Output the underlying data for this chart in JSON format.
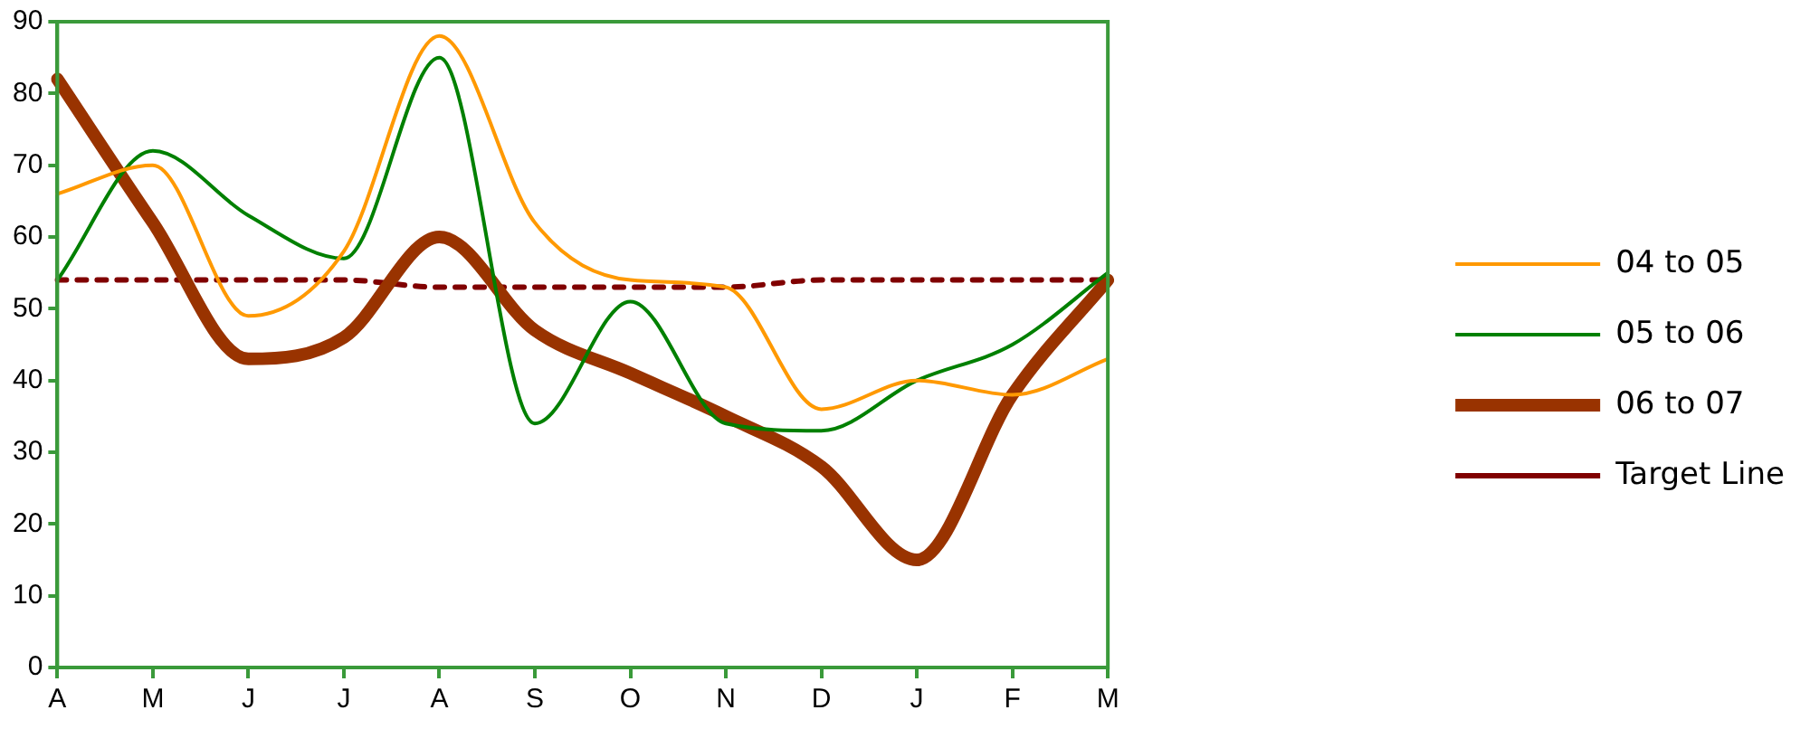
{
  "chart_data": {
    "type": "line",
    "categories": [
      "A",
      "M",
      "J",
      "J",
      "A",
      "S",
      "O",
      "N",
      "D",
      "J",
      "F",
      "M"
    ],
    "ylim": [
      0,
      90
    ],
    "yticks": [
      0,
      10,
      20,
      30,
      40,
      50,
      60,
      70,
      80,
      90
    ],
    "grid": false,
    "legend": "right",
    "marker": "none",
    "series": [
      {
        "name": "04 to 05",
        "color": "#ff9900",
        "values": [
          66,
          70,
          49,
          58,
          88,
          62,
          54,
          53,
          36,
          40,
          38,
          43
        ]
      },
      {
        "name": "05 to 06",
        "color": "#008000",
        "values": [
          54,
          72,
          63,
          57,
          85,
          34,
          51,
          34,
          33,
          40,
          45,
          55
        ]
      },
      {
        "name": "06 to 07",
        "color": "#993300",
        "values": [
          82,
          62,
          43,
          46,
          60,
          47,
          41,
          35,
          28,
          15,
          38,
          54
        ]
      },
      {
        "name": "Target Line",
        "color": "#800000",
        "line_style": "dotted",
        "values": [
          54,
          54,
          54,
          54,
          53,
          53,
          53,
          53,
          54,
          54,
          54,
          54
        ]
      }
    ]
  }
}
